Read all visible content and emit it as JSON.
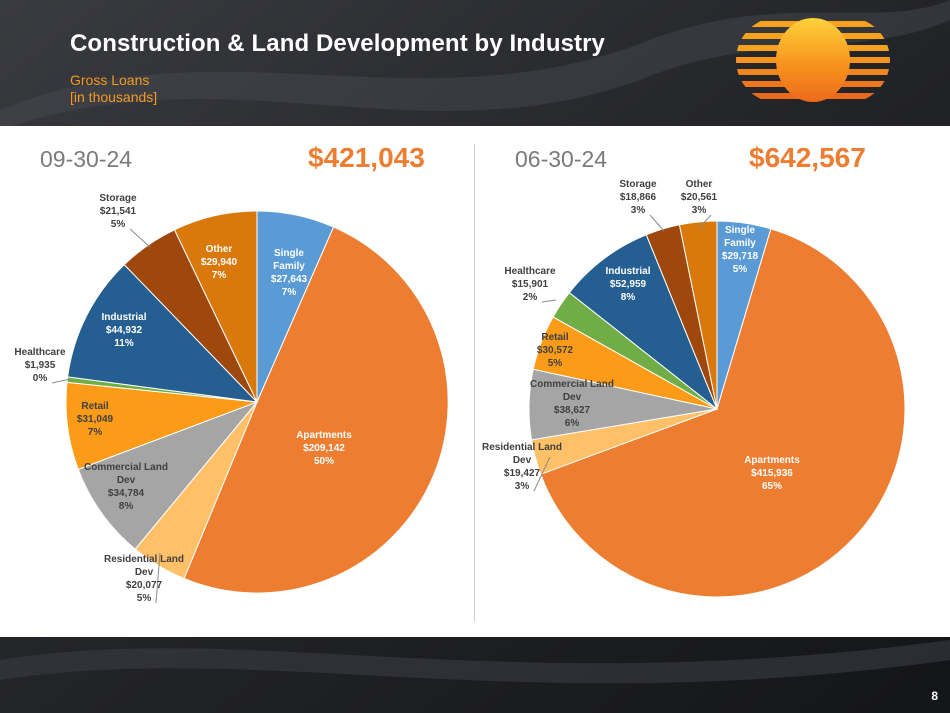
{
  "header": {
    "title": "Construction & Land Development by Industry",
    "subtitle_line1": "Gross Loans",
    "subtitle_line2": "[in thousands]"
  },
  "page_number": "8",
  "colors": {
    "single_family": "#5b9bd5",
    "apartments": "#ed7d31",
    "residential_land_dev": "#ffc067",
    "commercial_land_dev": "#a5a5a5",
    "retail": "#fb9b17",
    "healthcare": "#70ad47",
    "industrial": "#255e91",
    "storage": "#9e480e",
    "other": "#d9780b",
    "total": "#ed7d31",
    "subtitle": "#f39a1f"
  },
  "chart_data": [
    {
      "type": "pie",
      "period": "09-30-24",
      "total_label": "$421,043",
      "slices": [
        {
          "name": "Single Family",
          "value": 27643,
          "value_label": "$27,643",
          "pct": "7%",
          "color": "#5b9bd5"
        },
        {
          "name": "Apartments",
          "value": 209142,
          "value_label": "$209,142",
          "pct": "50%",
          "color": "#ed7d31"
        },
        {
          "name": "Residential Land Dev",
          "value": 20077,
          "value_label": "$20,077",
          "pct": "5%",
          "color": "#ffc067"
        },
        {
          "name": "Commercial Land Dev",
          "value": 34784,
          "value_label": "$34,784",
          "pct": "8%",
          "color": "#a5a5a5"
        },
        {
          "name": "Retail",
          "value": 31049,
          "value_label": "$31,049",
          "pct": "7%",
          "color": "#fb9b17"
        },
        {
          "name": "Healthcare",
          "value": 1935,
          "value_label": "$1,935",
          "pct": "0%",
          "color": "#70ad47"
        },
        {
          "name": "Industrial",
          "value": 44932,
          "value_label": "$44,932",
          "pct": "11%",
          "color": "#255e91"
        },
        {
          "name": "Storage",
          "value": 21541,
          "value_label": "$21,541",
          "pct": "5%",
          "color": "#9e480e"
        },
        {
          "name": "Other",
          "value": 29940,
          "value_label": "$29,940",
          "pct": "7%",
          "color": "#d9780b"
        }
      ]
    },
    {
      "type": "pie",
      "period": "06-30-24",
      "total_label": "$642,567",
      "slices": [
        {
          "name": "Single Family",
          "value": 29718,
          "value_label": "$29,718",
          "pct": "5%",
          "color": "#5b9bd5"
        },
        {
          "name": "Apartments",
          "value": 415936,
          "value_label": "$415,936",
          "pct": "65%",
          "color": "#ed7d31"
        },
        {
          "name": "Residential Land Dev",
          "value": 19427,
          "value_label": "$19,427",
          "pct": "3%",
          "color": "#ffc067"
        },
        {
          "name": "Commercial Land Dev",
          "value": 38627,
          "value_label": "$38,627",
          "pct": "6%",
          "color": "#a5a5a5"
        },
        {
          "name": "Retail",
          "value": 30572,
          "value_label": "$30,572",
          "pct": "5%",
          "color": "#fb9b17"
        },
        {
          "name": "Healthcare",
          "value": 15901,
          "value_label": "$15,901",
          "pct": "2%",
          "color": "#70ad47"
        },
        {
          "name": "Industrial",
          "value": 52959,
          "value_label": "$52,959",
          "pct": "8%",
          "color": "#255e91"
        },
        {
          "name": "Storage",
          "value": 18866,
          "value_label": "$18,866",
          "pct": "3%",
          "color": "#9e480e"
        },
        {
          "name": "Other",
          "value": 20561,
          "value_label": "$20,561",
          "pct": "3%",
          "color": "#d9780b"
        }
      ]
    }
  ]
}
